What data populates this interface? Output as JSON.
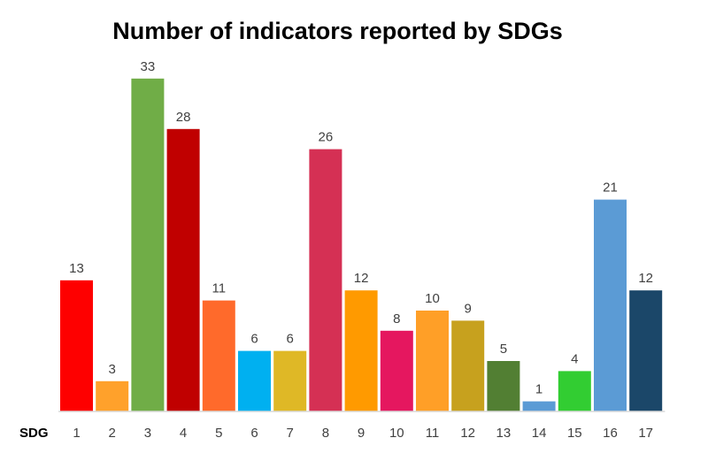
{
  "chart_data": {
    "type": "bar",
    "title": "Number of indicators reported by SDGs",
    "xlabel": "SDG",
    "ylabel": "",
    "categories": [
      "1",
      "2",
      "3",
      "4",
      "5",
      "6",
      "7",
      "8",
      "9",
      "10",
      "11",
      "12",
      "13",
      "14",
      "15",
      "16",
      "17"
    ],
    "values": [
      13,
      3,
      33,
      28,
      11,
      6,
      6,
      26,
      12,
      8,
      10,
      9,
      5,
      1,
      4,
      21,
      12
    ],
    "colors": [
      "#fe0000",
      "#ffa12b",
      "#70ad47",
      "#c00000",
      "#ff6a2b",
      "#00b0f0",
      "#dfb826",
      "#d53054",
      "#ff9a00",
      "#e5175f",
      "#ff9f27",
      "#c7a11e",
      "#527f33",
      "#5a9bd5",
      "#32cd32",
      "#5b9bd5",
      "#1b4769"
    ],
    "show_data_labels": true,
    "grid": false,
    "legend": "none"
  }
}
